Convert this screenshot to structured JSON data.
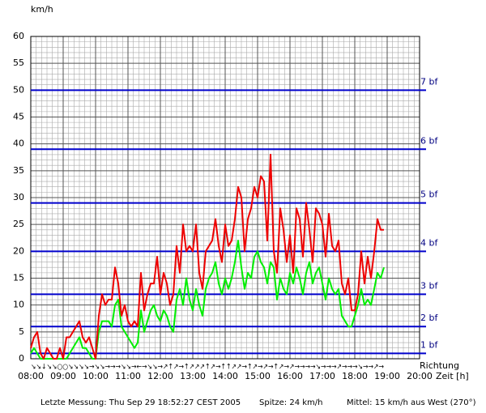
{
  "chart_data": {
    "type": "line",
    "y_label": "km/h",
    "x_label_1": "Richtung",
    "x_label_2": "Zeit [h]",
    "directions": "↘↘↓↘↘○○↘↘↘↘→↘↘→→→↘↘→←→↘↘→↗↑↗→↑↗↗↗↑↗→↑↑↗↗→↑↗→↗→↑↗→↗→→→→↘→→→↗→→→↘→→↗→",
    "footer": {
      "last": "Letzte Messung: Thu Sep 29 18:52:27 CEST 2005",
      "peak": "Spitze: 24 km/h",
      "mean": "Mittel: 15 km/h aus West (270°)"
    },
    "xlim": [
      8,
      20
    ],
    "xticks": [
      {
        "value": 8,
        "label": "08:00"
      },
      {
        "value": 9,
        "label": "09:00"
      },
      {
        "value": 10,
        "label": "10:00"
      },
      {
        "value": 11,
        "label": "11:00"
      },
      {
        "value": 12,
        "label": "12:00"
      },
      {
        "value": 13,
        "label": "13:00"
      },
      {
        "value": 14,
        "label": "14:00"
      },
      {
        "value": 15,
        "label": "15:00"
      },
      {
        "value": 16,
        "label": "16:00"
      },
      {
        "value": 17,
        "label": "17:00"
      },
      {
        "value": 18,
        "label": "18:00"
      },
      {
        "value": 19,
        "label": "19:00"
      },
      {
        "value": 20,
        "label": "20:00"
      }
    ],
    "ylim": [
      0,
      60
    ],
    "yticks": [
      0,
      5,
      10,
      15,
      20,
      25,
      30,
      35,
      40,
      45,
      50,
      55,
      60
    ],
    "grid": true,
    "beaufort_color": "#0000cc",
    "beaufort": [
      {
        "value": 1,
        "label": "1 bf"
      },
      {
        "value": 6,
        "label": "2 bf"
      },
      {
        "value": 12,
        "label": "3 bf"
      },
      {
        "value": 20,
        "label": "4 bf"
      },
      {
        "value": 29,
        "label": "5 bf"
      },
      {
        "value": 39,
        "label": "6 bf"
      },
      {
        "value": 50,
        "label": "7 bf"
      }
    ],
    "x": [
      8,
      8.1,
      8.2,
      8.3,
      8.4,
      8.5,
      8.6,
      8.7,
      8.8,
      8.9,
      9,
      9.1,
      9.2,
      9.3,
      9.4,
      9.5,
      9.6,
      9.7,
      9.8,
      9.9,
      10,
      10.1,
      10.2,
      10.3,
      10.4,
      10.5,
      10.6,
      10.7,
      10.8,
      10.9,
      11,
      11.1,
      11.2,
      11.3,
      11.4,
      11.5,
      11.6,
      11.7,
      11.8,
      11.9,
      12,
      12.1,
      12.2,
      12.3,
      12.4,
      12.5,
      12.6,
      12.7,
      12.8,
      12.9,
      13,
      13.1,
      13.2,
      13.3,
      13.4,
      13.5,
      13.6,
      13.7,
      13.8,
      13.9,
      14,
      14.1,
      14.2,
      14.3,
      14.4,
      14.5,
      14.6,
      14.7,
      14.8,
      14.9,
      15,
      15.1,
      15.2,
      15.3,
      15.4,
      15.5,
      15.6,
      15.7,
      15.8,
      15.9,
      16,
      16.1,
      16.2,
      16.3,
      16.4,
      16.5,
      16.6,
      16.7,
      16.8,
      16.9,
      17,
      17.1,
      17.2,
      17.3,
      17.4,
      17.5,
      17.6,
      17.7,
      17.8,
      17.9,
      18,
      18.1,
      18.2,
      18.3,
      18.4,
      18.5,
      18.6,
      18.7,
      18.8,
      18.9
    ],
    "series": [
      {
        "name": "Spitze",
        "color": "#ee0000",
        "values": [
          2,
          4,
          5,
          1,
          0,
          2,
          1,
          0,
          0,
          2,
          0,
          4,
          4,
          5,
          6,
          7,
          4,
          3,
          4,
          2,
          0,
          8,
          12,
          10,
          11,
          11,
          17,
          14,
          8,
          10,
          7,
          6,
          7,
          6,
          16,
          9,
          12,
          14,
          14,
          19,
          12,
          16,
          14,
          10,
          12,
          21,
          16,
          25,
          20,
          21,
          20,
          25,
          16,
          13,
          20,
          21,
          22,
          26,
          21,
          18,
          25,
          21,
          22,
          26,
          32,
          30,
          20,
          26,
          28,
          32,
          30,
          34,
          33,
          22,
          38,
          20,
          16,
          28,
          24,
          18,
          23,
          16,
          28,
          26,
          19,
          29,
          24,
          18,
          28,
          27,
          25,
          19,
          27,
          21,
          20,
          22,
          14,
          12,
          15,
          9,
          9,
          12,
          20,
          14,
          19,
          15,
          20,
          26,
          24,
          24
        ]
      },
      {
        "name": "Mittel",
        "color": "#00ee00",
        "values": [
          1,
          2,
          1,
          0,
          0,
          0,
          0,
          0,
          0,
          0,
          0,
          0,
          1,
          2,
          3,
          4,
          2,
          2,
          1,
          0,
          0,
          5,
          7,
          7,
          7,
          6,
          10,
          11,
          6,
          5,
          4,
          3,
          2,
          3,
          9,
          5,
          7,
          9,
          10,
          8,
          7,
          9,
          8,
          6,
          5,
          11,
          13,
          10,
          15,
          11,
          9,
          13,
          10,
          8,
          13,
          15,
          16,
          18,
          14,
          12,
          15,
          13,
          15,
          18,
          22,
          17,
          13,
          16,
          15,
          19,
          20,
          18,
          17,
          14,
          18,
          17,
          11,
          15,
          13,
          12,
          16,
          14,
          17,
          15,
          12,
          16,
          18,
          14,
          16,
          17,
          14,
          11,
          15,
          13,
          12,
          13,
          8,
          7,
          6,
          6,
          8,
          10,
          13,
          10,
          11,
          10,
          13,
          16,
          15,
          17
        ]
      }
    ]
  }
}
